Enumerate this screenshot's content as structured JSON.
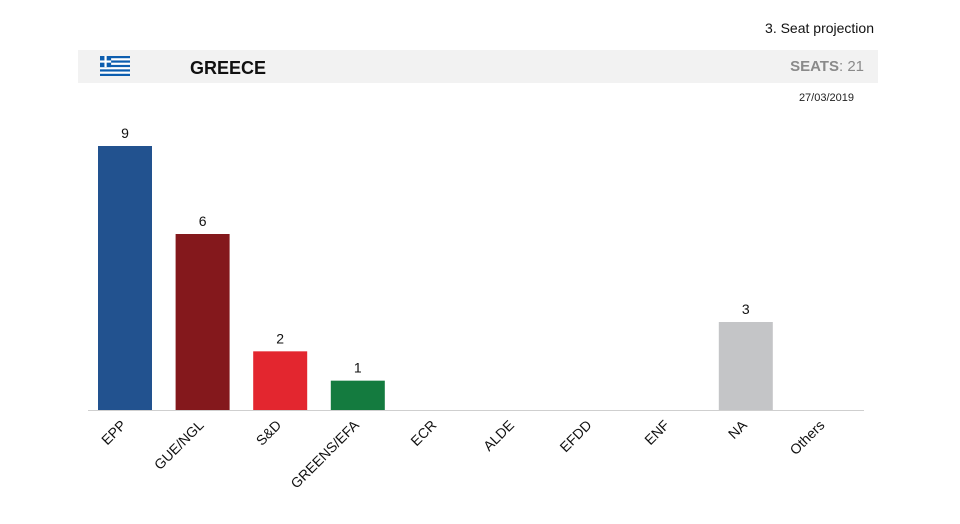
{
  "header": {
    "section_title": "3. Seat projection",
    "country": "GREECE",
    "seats_label": "SEATS",
    "seats_value": "21",
    "date": "27/03/2019",
    "flag_icon": "greece-flag-icon"
  },
  "chart_data": {
    "type": "bar",
    "categories": [
      "EPP",
      "GUE/NGL",
      "S&D",
      "GREENS/EFA",
      "ECR",
      "ALDE",
      "EFDD",
      "ENF",
      "NA",
      "Others"
    ],
    "values": [
      9,
      6,
      2,
      1,
      0,
      0,
      0,
      0,
      3,
      0
    ],
    "colors": [
      "#22528f",
      "#84181c",
      "#e3262f",
      "#147b3f",
      "#1f5fa0",
      "#f2c200",
      "#2aa7a4",
      "#1f3a6b",
      "#c4c5c7",
      "#999999"
    ],
    "data_labels": [
      "9",
      "6",
      "2",
      "1",
      "",
      "",
      "",
      "",
      "3",
      ""
    ],
    "title": "",
    "xlabel": "",
    "ylabel": "",
    "ylim": [
      0,
      9
    ],
    "grid": false,
    "legend": "none"
  }
}
